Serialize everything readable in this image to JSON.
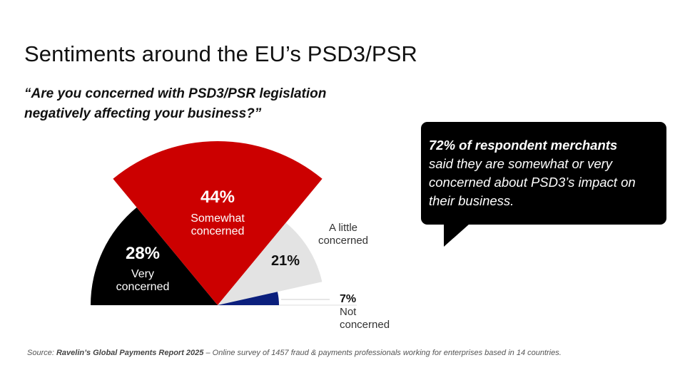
{
  "title": "Sentiments around the EU’s PSD3/PSR",
  "question": "“Are you concerned with PSD3/PSR legislation negatively affecting your business?”",
  "chart_data": {
    "type": "pie",
    "variant": "semicircle-radial",
    "categories": [
      "Very concerned",
      "Somewhat concerned",
      "A little concerned",
      "Not concerned"
    ],
    "values": [
      28,
      44,
      21,
      7
    ],
    "value_labels": [
      "28%",
      "44%",
      "21%",
      "7%"
    ],
    "name_lines": [
      [
        "Very",
        "concerned"
      ],
      [
        "Somewhat",
        "concerned"
      ],
      [
        "A little",
        "concerned"
      ],
      [
        "Not",
        "concerned"
      ]
    ],
    "colors": [
      "#000000",
      "#cc0000",
      "#e3e3e3",
      "#0b1f7d"
    ],
    "label_colors": [
      "#ffffff",
      "#ffffff",
      "#111111",
      "#111111"
    ],
    "title": "",
    "legend": "inline labels"
  },
  "callout": {
    "headline": "72% of respondent merchants",
    "body": "said they are somewhat or very concerned about PSD3’s impact on their business."
  },
  "source": {
    "prefix": "Source: ",
    "name": "Ravelin’s Global Payments Report 2025",
    "rest": " – Online survey of 1457 fraud & payments professionals working for enterprises based in 14 countries."
  }
}
